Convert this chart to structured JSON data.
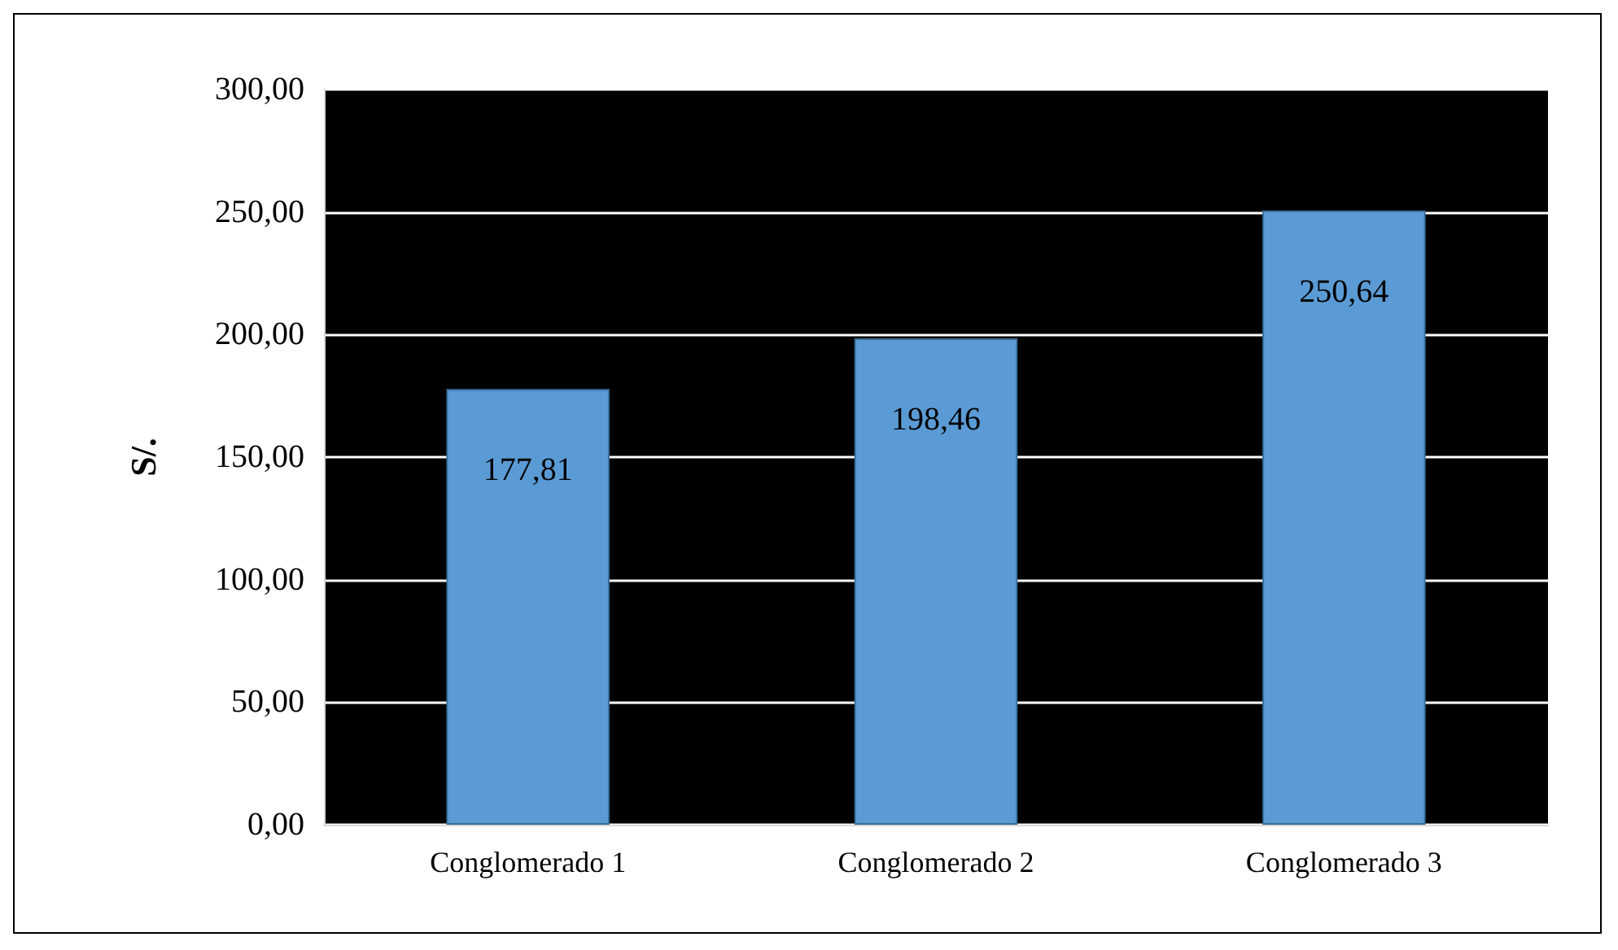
{
  "chart_data": {
    "type": "bar",
    "ylabel": "S/.",
    "categories": [
      "Conglomerado 1",
      "Conglomerado 2",
      "Conglomerado 3"
    ],
    "values": [
      177.81,
      198.46,
      250.64
    ],
    "color": "#5b9bd5",
    "value_labels": [
      "177,81",
      "198,46",
      "250,64"
    ],
    "ylim": [
      0,
      300
    ],
    "yticks": [
      {
        "value": 0,
        "label": "0,00"
      },
      {
        "value": 50,
        "label": "50,00"
      },
      {
        "value": 100,
        "label": "100,00"
      },
      {
        "value": 150,
        "label": "150,00"
      },
      {
        "value": 200,
        "label": "200,00"
      },
      {
        "value": 250,
        "label": "250,00"
      },
      {
        "value": 300,
        "label": "300,00"
      }
    ],
    "grid": "y"
  }
}
